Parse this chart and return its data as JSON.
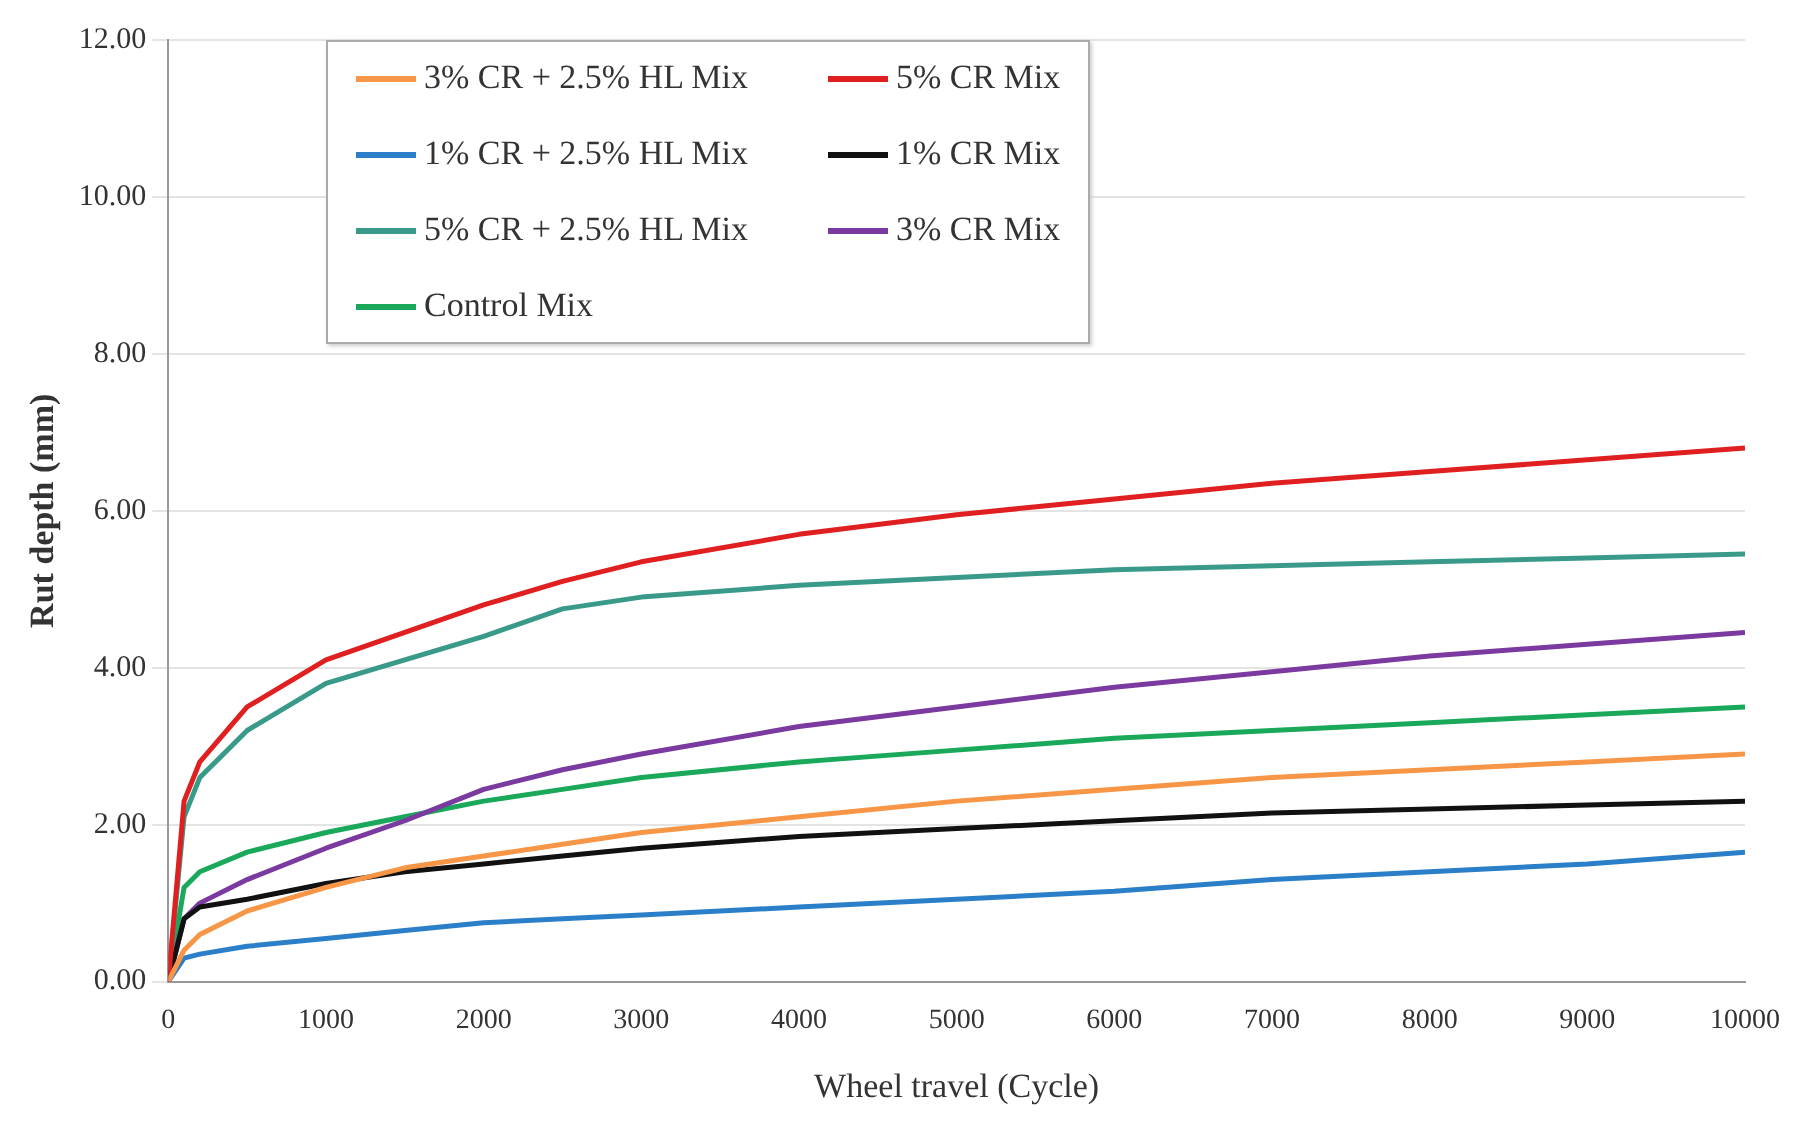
{
  "chart_data": {
    "type": "line",
    "xlabel": "Wheel travel (Cycle)",
    "ylabel": "Rut depth (mm)",
    "x": [
      0,
      100,
      200,
      500,
      1000,
      1500,
      2000,
      2500,
      3000,
      4000,
      5000,
      6000,
      7000,
      8000,
      9000,
      10000
    ],
    "xlim": [
      0,
      10000
    ],
    "xticks": [
      0,
      1000,
      2000,
      3000,
      4000,
      5000,
      6000,
      7000,
      8000,
      9000,
      10000
    ],
    "ylim": [
      0,
      12
    ],
    "yticks": [
      {
        "value": 0,
        "label": "0.00"
      },
      {
        "value": 2,
        "label": "2.00"
      },
      {
        "value": 4,
        "label": "4.00"
      },
      {
        "value": 6,
        "label": "6.00"
      },
      {
        "value": 8,
        "label": "8.00"
      },
      {
        "value": 10,
        "label": "10.00"
      },
      {
        "value": 12,
        "label": "12.00"
      }
    ],
    "grid": "y",
    "legend": "top",
    "marker": "none",
    "line_style": "solid",
    "series": [
      {
        "name": "3% CR + 2.5% HL Mix",
        "color": "#f79646",
        "values": [
          0,
          0.4,
          0.6,
          0.9,
          1.2,
          1.45,
          1.6,
          1.75,
          1.9,
          2.1,
          2.3,
          2.45,
          2.6,
          2.7,
          2.8,
          2.9
        ]
      },
      {
        "name": "5% CR Mix",
        "color": "#e02020",
        "values": [
          0,
          2.3,
          2.8,
          3.5,
          4.1,
          4.45,
          4.8,
          5.1,
          5.35,
          5.7,
          5.95,
          6.15,
          6.35,
          6.5,
          6.65,
          6.8
        ]
      },
      {
        "name": "1% CR + 2.5% HL Mix",
        "color": "#2a7fc8",
        "values": [
          0,
          0.3,
          0.35,
          0.45,
          0.55,
          0.65,
          0.75,
          0.8,
          0.85,
          0.95,
          1.05,
          1.15,
          1.3,
          1.4,
          1.5,
          1.65
        ]
      },
      {
        "name": "1% CR Mix",
        "color": "#111111",
        "values": [
          0,
          0.8,
          0.95,
          1.05,
          1.25,
          1.4,
          1.5,
          1.6,
          1.7,
          1.85,
          1.95,
          2.05,
          2.15,
          2.2,
          2.25,
          2.3
        ]
      },
      {
        "name": "5% CR + 2.5% HL Mix",
        "color": "#3a9a8a",
        "values": [
          0,
          2.1,
          2.6,
          3.2,
          3.8,
          4.1,
          4.4,
          4.75,
          4.9,
          5.05,
          5.15,
          5.25,
          5.3,
          5.35,
          5.4,
          5.45
        ]
      },
      {
        "name": "3% CR  Mix",
        "color": "#7b3aa0",
        "values": [
          0,
          0.8,
          1.0,
          1.3,
          1.7,
          2.05,
          2.45,
          2.7,
          2.9,
          3.25,
          3.5,
          3.75,
          3.95,
          4.15,
          4.3,
          4.45
        ]
      },
      {
        "name": "Control Mix",
        "color": "#1aa85a",
        "values": [
          0,
          1.2,
          1.4,
          1.65,
          1.9,
          2.1,
          2.3,
          2.45,
          2.6,
          2.8,
          2.95,
          3.1,
          3.2,
          3.3,
          3.4,
          3.5
        ]
      }
    ]
  }
}
